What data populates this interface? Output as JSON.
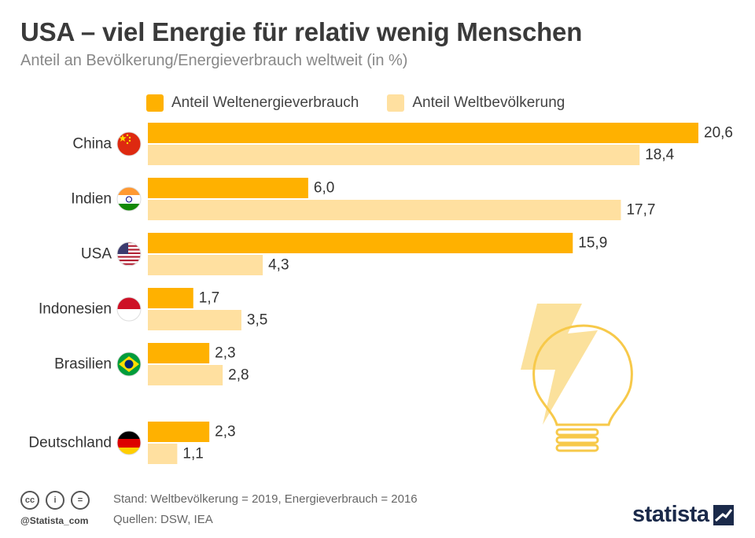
{
  "title": "USA – viel Energie für relativ wenig Menschen",
  "subtitle": "Anteil an Bevölkerung/Energieverbrauch weltweit (in %)",
  "legend": {
    "energy": "Anteil Weltenergieverbrauch",
    "population": "Anteil Weltbevölkerung"
  },
  "colors": {
    "energy": "#FFB100",
    "population": "#FFE0A0",
    "bulb": "#F7C94A",
    "text": "#333333"
  },
  "chart_data": {
    "type": "bar",
    "orientation": "horizontal",
    "categories": [
      "China",
      "Indien",
      "USA",
      "Indonesien",
      "Brasilien",
      "Deutschland"
    ],
    "flags": [
      "china-flag-icon",
      "india-flag-icon",
      "usa-flag-icon",
      "indonesia-flag-icon",
      "brazil-flag-icon",
      "germany-flag-icon"
    ],
    "series": [
      {
        "name": "Anteil Weltenergieverbrauch",
        "values": [
          20.6,
          6.0,
          15.9,
          1.7,
          2.3,
          2.3
        ],
        "labels": [
          "20,6",
          "6,0",
          "15,9",
          "1,7",
          "2,3",
          "2,3"
        ]
      },
      {
        "name": "Anteil Weltbevölkerung",
        "values": [
          18.4,
          17.7,
          4.3,
          3.5,
          2.8,
          1.1
        ],
        "labels": [
          "18,4",
          "17,7",
          "4,3",
          "3,5",
          "2,8",
          "1,1"
        ]
      }
    ],
    "xlim": [
      0,
      20.6
    ],
    "legend_position": "top",
    "grid": false
  },
  "footer": {
    "note": "Stand: Weltbevölkerung = 2019, Energieverbrauch = 2016",
    "sources": "Quellen: DSW, IEA",
    "handle": "@Statista_com",
    "brand": "statista",
    "cc_icons": [
      "cc-icon",
      "by-icon",
      "nd-icon"
    ],
    "cc_glyphs": [
      "cc",
      "i",
      "="
    ]
  }
}
